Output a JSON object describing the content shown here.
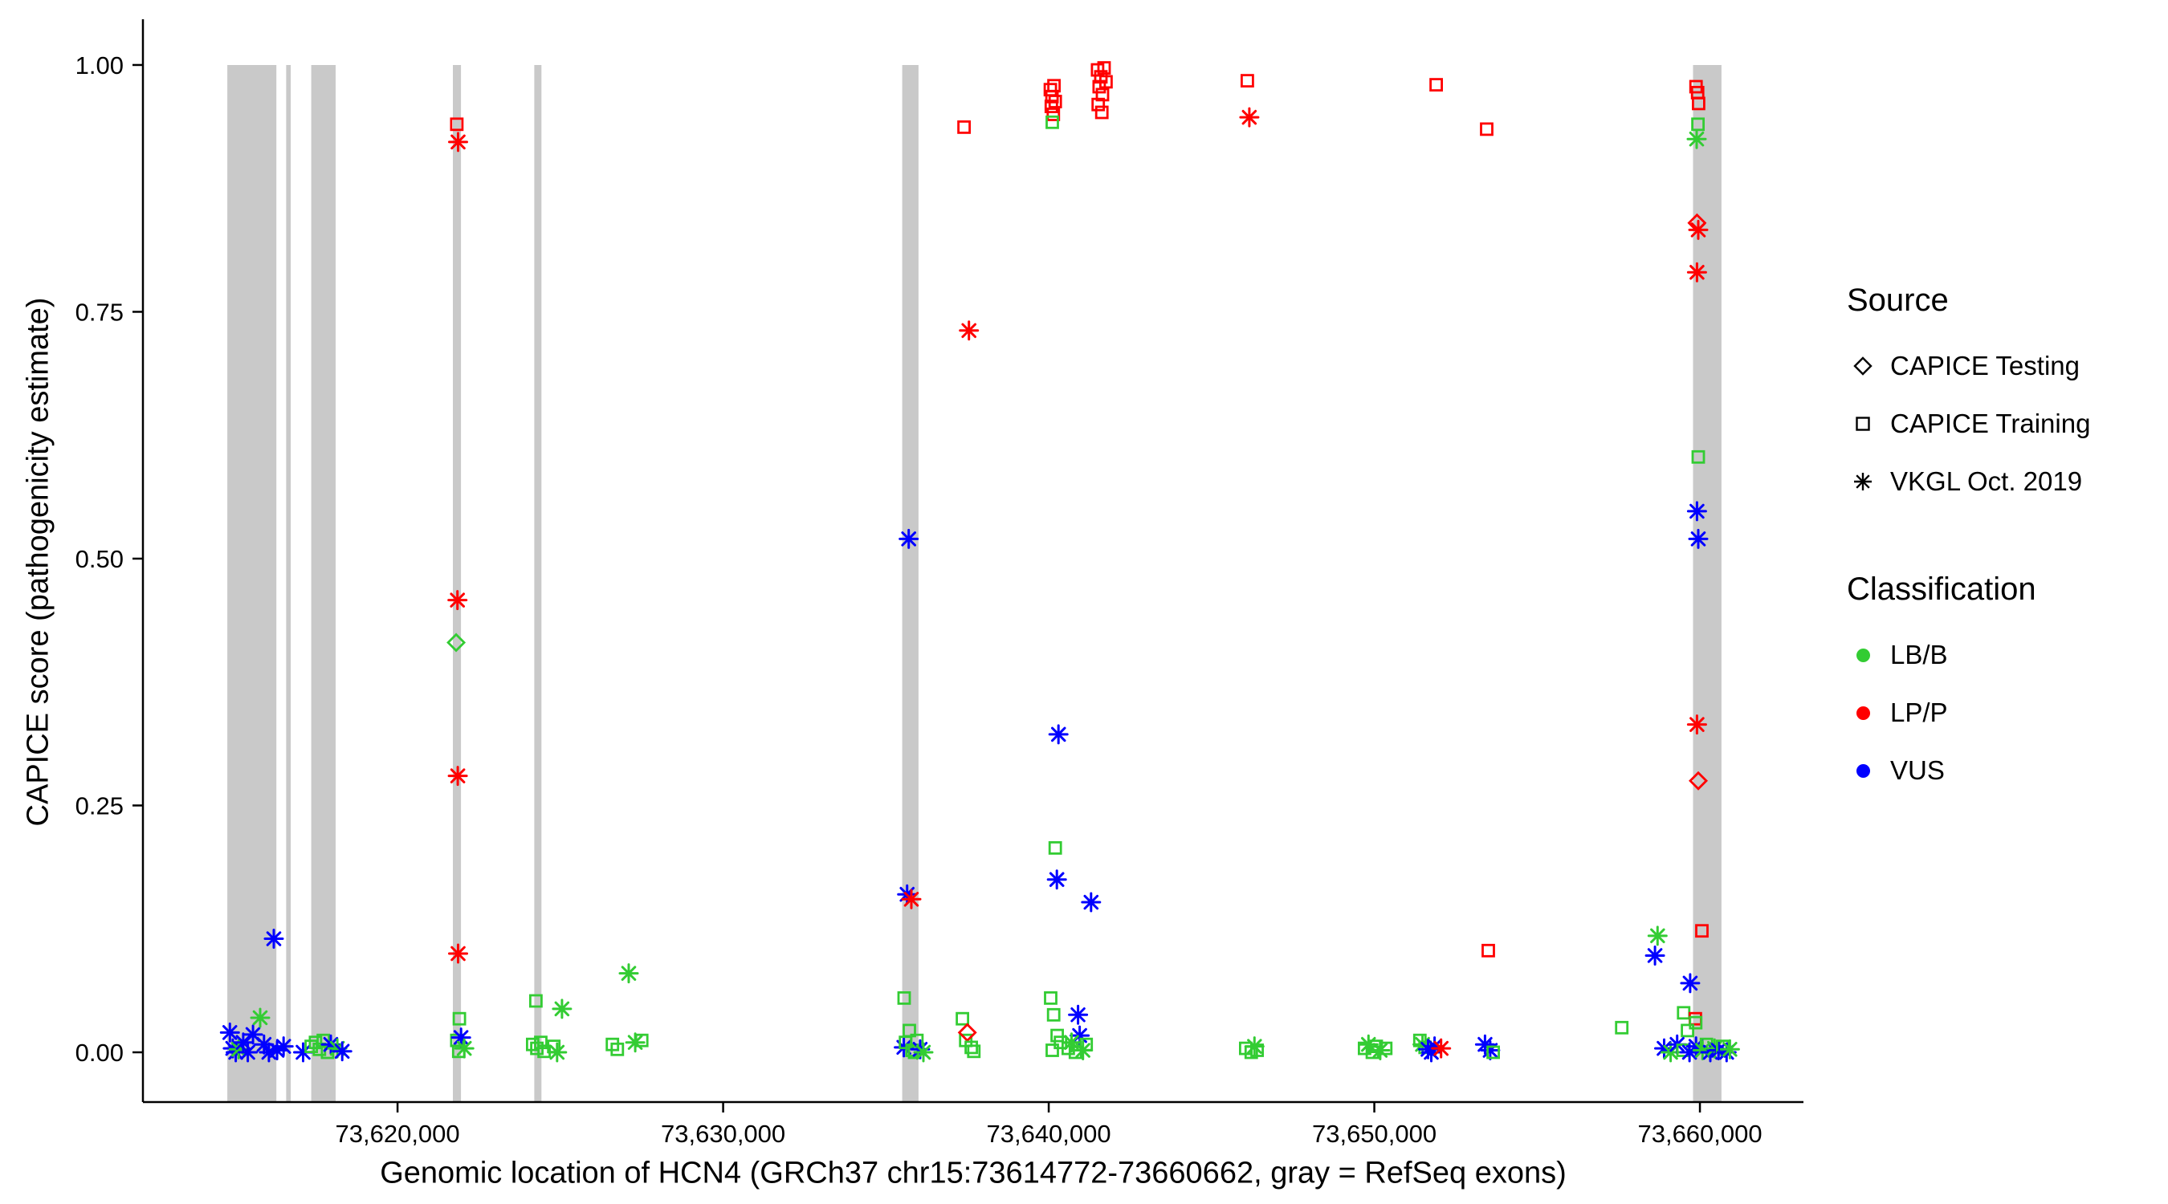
{
  "legend": {
    "source": {
      "title": "Source",
      "items": [
        {
          "label": "CAPICE Testing",
          "marker": "diamond"
        },
        {
          "label": "CAPICE Training",
          "marker": "square"
        },
        {
          "label": "VKGL Oct. 2019",
          "marker": "asterisk"
        }
      ]
    },
    "classification": {
      "title": "Classification",
      "items": [
        {
          "label": "LB/B",
          "color": "#33CC33"
        },
        {
          "label": "LP/P",
          "color": "#FF0000"
        },
        {
          "label": "VUS",
          "color": "#0000FF"
        }
      ]
    }
  },
  "chart_data": {
    "type": "scatter",
    "xlabel": "Genomic location of HCN4 (GRCh37 chr15:73614772-73660662, gray = RefSeq exons)",
    "ylabel": "CAPICE score (pathogenicity estimate)",
    "xlim": [
      73612180,
      73663180
    ],
    "ylim": [
      -0.0504,
      1.0463
    ],
    "grid": false,
    "legend_position": "right",
    "x_ticks": [
      {
        "value": 73620000,
        "label": "73,620,000"
      },
      {
        "value": 73630000,
        "label": "73,630,000"
      },
      {
        "value": 73640000,
        "label": "73,640,000"
      },
      {
        "value": 73650000,
        "label": "73,650,000"
      },
      {
        "value": 73660000,
        "label": "73,660,000"
      }
    ],
    "y_ticks": [
      {
        "value": 0.0,
        "label": "0.00"
      },
      {
        "value": 0.25,
        "label": "0.25"
      },
      {
        "value": 0.5,
        "label": "0.50"
      },
      {
        "value": 0.75,
        "label": "0.75"
      },
      {
        "value": 1.0,
        "label": "1.00"
      }
    ],
    "exon_color": "#C9C9C9",
    "refseq_exons": [
      [
        73614772,
        73616280
      ],
      [
        73616580,
        73616720
      ],
      [
        73617350,
        73618100
      ],
      [
        73621700,
        73621950
      ],
      [
        73624200,
        73624420
      ],
      [
        73635500,
        73636000
      ],
      [
        73659790,
        73660662
      ]
    ],
    "marker_codes": {
      "d": "CAPICE Testing (open diamond)",
      "q": "CAPICE Training (open square)",
      "a": "VKGL Oct. 2019 (asterisk)"
    },
    "class_codes": {
      "g": "LB/B",
      "r": "LP/P",
      "b": "VUS"
    },
    "classification_colors": {
      "LB/B": "#33CC33",
      "LP/P": "#FF0000",
      "VUS": "#0000FF"
    },
    "point_format": [
      "genomic_position",
      "capice_score",
      "source_code",
      "classification_code"
    ],
    "points": [
      [
        73614850,
        0.02,
        "a",
        "b"
      ],
      [
        73614940,
        0.004,
        "a",
        "b"
      ],
      [
        73615030,
        0.0,
        "a",
        "b"
      ],
      [
        73615120,
        0.003,
        "a",
        "g"
      ],
      [
        73615260,
        0.01,
        "a",
        "b"
      ],
      [
        73615400,
        0.0,
        "a",
        "b"
      ],
      [
        73615560,
        0.018,
        "a",
        "b"
      ],
      [
        73615780,
        0.035,
        "a",
        "g"
      ],
      [
        73615900,
        0.008,
        "a",
        "b"
      ],
      [
        73616050,
        0.0,
        "a",
        "b"
      ],
      [
        73616200,
        0.115,
        "a",
        "b"
      ],
      [
        73616300,
        0.002,
        "a",
        "b"
      ],
      [
        73616500,
        0.006,
        "a",
        "b"
      ],
      [
        73617100,
        0.0,
        "a",
        "b"
      ],
      [
        73617350,
        0.006,
        "q",
        "g"
      ],
      [
        73617480,
        0.01,
        "q",
        "g"
      ],
      [
        73617600,
        0.003,
        "q",
        "g"
      ],
      [
        73617720,
        0.012,
        "q",
        "g"
      ],
      [
        73617850,
        0.0,
        "q",
        "g"
      ],
      [
        73617950,
        0.008,
        "a",
        "b"
      ],
      [
        73618150,
        0.004,
        "a",
        "g"
      ],
      [
        73618300,
        0.001,
        "a",
        "b"
      ],
      [
        73621820,
        0.94,
        "q",
        "r"
      ],
      [
        73621860,
        0.922,
        "a",
        "r"
      ],
      [
        73621840,
        0.458,
        "a",
        "r"
      ],
      [
        73621800,
        0.415,
        "d",
        "g"
      ],
      [
        73621850,
        0.28,
        "a",
        "r"
      ],
      [
        73621860,
        0.1,
        "a",
        "r"
      ],
      [
        73621900,
        0.034,
        "q",
        "g"
      ],
      [
        73621820,
        0.012,
        "q",
        "g"
      ],
      [
        73621950,
        0.015,
        "a",
        "b"
      ],
      [
        73622050,
        0.004,
        "a",
        "g"
      ],
      [
        73621880,
        0.001,
        "q",
        "g"
      ],
      [
        73624250,
        0.052,
        "q",
        "g"
      ],
      [
        73624150,
        0.008,
        "q",
        "g"
      ],
      [
        73624280,
        0.004,
        "q",
        "g"
      ],
      [
        73624400,
        0.01,
        "q",
        "g"
      ],
      [
        73624500,
        0.001,
        "q",
        "g"
      ],
      [
        73624800,
        0.006,
        "q",
        "g"
      ],
      [
        73624900,
        0.0,
        "a",
        "g"
      ],
      [
        73625050,
        0.044,
        "a",
        "g"
      ],
      [
        73626600,
        0.008,
        "q",
        "g"
      ],
      [
        73626750,
        0.003,
        "q",
        "g"
      ],
      [
        73627100,
        0.08,
        "a",
        "g"
      ],
      [
        73627300,
        0.01,
        "a",
        "g"
      ],
      [
        73627500,
        0.012,
        "q",
        "g"
      ],
      [
        73635550,
        0.005,
        "a",
        "b"
      ],
      [
        73635560,
        0.055,
        "q",
        "g"
      ],
      [
        73635600,
        0.01,
        "q",
        "g"
      ],
      [
        73635650,
        0.16,
        "a",
        "b"
      ],
      [
        73635700,
        0.52,
        "a",
        "b"
      ],
      [
        73635720,
        0.022,
        "q",
        "g"
      ],
      [
        73635780,
        0.155,
        "a",
        "r"
      ],
      [
        73635800,
        0.002,
        "q",
        "g"
      ],
      [
        73635880,
        0.0,
        "q",
        "g"
      ],
      [
        73635950,
        0.012,
        "q",
        "g"
      ],
      [
        73636050,
        0.003,
        "a",
        "b"
      ],
      [
        73636150,
        0.0,
        "a",
        "g"
      ],
      [
        73637400,
        0.937,
        "q",
        "r"
      ],
      [
        73637550,
        0.731,
        "a",
        "r"
      ],
      [
        73637350,
        0.034,
        "q",
        "g"
      ],
      [
        73637450,
        0.012,
        "q",
        "g"
      ],
      [
        73637500,
        0.02,
        "d",
        "r"
      ],
      [
        73637620,
        0.005,
        "q",
        "g"
      ],
      [
        73637700,
        0.001,
        "q",
        "g"
      ],
      [
        73640050,
        0.975,
        "q",
        "r"
      ],
      [
        73640100,
        0.968,
        "q",
        "r"
      ],
      [
        73640160,
        0.979,
        "q",
        "r"
      ],
      [
        73640080,
        0.958,
        "q",
        "r"
      ],
      [
        73640140,
        0.95,
        "q",
        "r"
      ],
      [
        73640110,
        0.942,
        "q",
        "g"
      ],
      [
        73640200,
        0.963,
        "q",
        "r"
      ],
      [
        73640300,
        0.322,
        "a",
        "b"
      ],
      [
        73640200,
        0.207,
        "q",
        "g"
      ],
      [
        73640250,
        0.175,
        "a",
        "b"
      ],
      [
        73641300,
        0.152,
        "a",
        "b"
      ],
      [
        73640060,
        0.055,
        "q",
        "g"
      ],
      [
        73640150,
        0.038,
        "q",
        "g"
      ],
      [
        73640260,
        0.017,
        "q",
        "g"
      ],
      [
        73640360,
        0.01,
        "q",
        "g"
      ],
      [
        73640110,
        0.002,
        "q",
        "g"
      ],
      [
        73640900,
        0.038,
        "a",
        "b"
      ],
      [
        73640950,
        0.017,
        "a",
        "b"
      ],
      [
        73640700,
        0.01,
        "a",
        "g"
      ],
      [
        73640600,
        0.004,
        "q",
        "g"
      ],
      [
        73640820,
        0.0,
        "q",
        "g"
      ],
      [
        73641050,
        0.002,
        "a",
        "g"
      ],
      [
        73641150,
        0.008,
        "q",
        "g"
      ],
      [
        73641500,
        0.995,
        "q",
        "r"
      ],
      [
        73641600,
        0.988,
        "q",
        "r"
      ],
      [
        73641700,
        0.997,
        "q",
        "r"
      ],
      [
        73641550,
        0.978,
        "q",
        "r"
      ],
      [
        73641650,
        0.97,
        "q",
        "r"
      ],
      [
        73641520,
        0.96,
        "q",
        "r"
      ],
      [
        73641630,
        0.952,
        "q",
        "r"
      ],
      [
        73641760,
        0.983,
        "q",
        "r"
      ],
      [
        73646100,
        0.984,
        "q",
        "r"
      ],
      [
        73646160,
        0.947,
        "a",
        "r"
      ],
      [
        73646050,
        0.004,
        "q",
        "g"
      ],
      [
        73646220,
        0.0,
        "q",
        "g"
      ],
      [
        73646320,
        0.006,
        "a",
        "g"
      ],
      [
        73646400,
        0.002,
        "q",
        "g"
      ],
      [
        73649700,
        0.004,
        "q",
        "g"
      ],
      [
        73649820,
        0.008,
        "a",
        "g"
      ],
      [
        73649940,
        0.0,
        "q",
        "g"
      ],
      [
        73650060,
        0.006,
        "q",
        "g"
      ],
      [
        73650180,
        0.002,
        "a",
        "g"
      ],
      [
        73650350,
        0.004,
        "q",
        "g"
      ],
      [
        73651900,
        0.98,
        "q",
        "r"
      ],
      [
        73651400,
        0.012,
        "q",
        "g"
      ],
      [
        73651480,
        0.008,
        "a",
        "g"
      ],
      [
        73651560,
        0.005,
        "q",
        "g"
      ],
      [
        73651650,
        0.003,
        "a",
        "b"
      ],
      [
        73651750,
        0.0,
        "a",
        "b"
      ],
      [
        73651850,
        0.006,
        "a",
        "b"
      ],
      [
        73652050,
        0.004,
        "a",
        "r"
      ],
      [
        73653450,
        0.935,
        "q",
        "r"
      ],
      [
        73653500,
        0.103,
        "q",
        "r"
      ],
      [
        73653400,
        0.008,
        "a",
        "b"
      ],
      [
        73653560,
        0.002,
        "a",
        "b"
      ],
      [
        73653650,
        0.0,
        "q",
        "g"
      ],
      [
        73657600,
        0.025,
        "q",
        "g"
      ],
      [
        73659880,
        0.978,
        "q",
        "r"
      ],
      [
        73659930,
        0.972,
        "q",
        "r"
      ],
      [
        73659960,
        0.961,
        "q",
        "r"
      ],
      [
        73659940,
        0.94,
        "q",
        "g"
      ],
      [
        73659900,
        0.925,
        "a",
        "g"
      ],
      [
        73659910,
        0.84,
        "d",
        "r"
      ],
      [
        73659950,
        0.833,
        "a",
        "r"
      ],
      [
        73659910,
        0.79,
        "a",
        "r"
      ],
      [
        73659950,
        0.603,
        "q",
        "g"
      ],
      [
        73659910,
        0.548,
        "a",
        "b"
      ],
      [
        73659950,
        0.52,
        "a",
        "b"
      ],
      [
        73659910,
        0.332,
        "a",
        "r"
      ],
      [
        73659950,
        0.275,
        "d",
        "r"
      ],
      [
        73660060,
        0.123,
        "q",
        "r"
      ],
      [
        73658700,
        0.118,
        "a",
        "g"
      ],
      [
        73658620,
        0.098,
        "a",
        "b"
      ],
      [
        73659700,
        0.07,
        "a",
        "b"
      ],
      [
        73659500,
        0.04,
        "q",
        "g"
      ],
      [
        73659860,
        0.034,
        "q",
        "r"
      ],
      [
        73659870,
        0.03,
        "q",
        "g"
      ],
      [
        73659620,
        0.022,
        "q",
        "g"
      ],
      [
        73658900,
        0.004,
        "a",
        "b"
      ],
      [
        73659100,
        0.0,
        "a",
        "g"
      ],
      [
        73659300,
        0.008,
        "a",
        "b"
      ],
      [
        73659480,
        0.002,
        "q",
        "g"
      ],
      [
        73659680,
        0.0,
        "a",
        "b"
      ],
      [
        73659880,
        0.006,
        "a",
        "b"
      ],
      [
        73660080,
        0.002,
        "a",
        "g"
      ],
      [
        73660200,
        0.008,
        "q",
        "g"
      ],
      [
        73660320,
        0.0,
        "a",
        "b"
      ],
      [
        73660450,
        0.004,
        "a",
        "g"
      ],
      [
        73660570,
        0.002,
        "a",
        "b"
      ],
      [
        73660700,
        0.006,
        "q",
        "g"
      ],
      [
        73660820,
        0.0,
        "a",
        "b"
      ],
      [
        73660920,
        0.003,
        "a",
        "g"
      ]
    ]
  }
}
